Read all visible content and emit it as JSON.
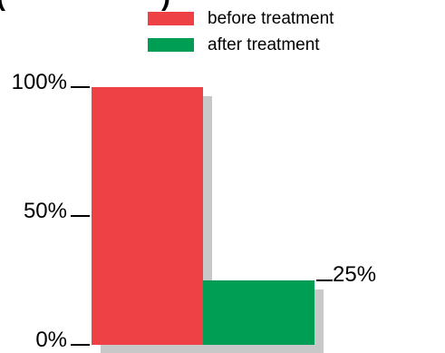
{
  "colors": {
    "before": "#ee4146",
    "after": "#009e55",
    "shadow": "#c8c8c8",
    "axis": "#000000"
  },
  "chart_data": {
    "type": "bar",
    "title": "",
    "xlabel": "",
    "ylabel": "",
    "ylim": [
      0,
      100
    ],
    "y_ticks": [
      {
        "value": 0,
        "label": "0%"
      },
      {
        "value": 50,
        "label": "50%"
      },
      {
        "value": 100,
        "label": "100%"
      }
    ],
    "legend": {
      "placement": "top-right",
      "entries": [
        "before treatment",
        "after treatment"
      ]
    },
    "series": [
      {
        "name": "before treatment",
        "values": [
          100
        ],
        "data_label": ""
      },
      {
        "name": "after treatment",
        "values": [
          25
        ],
        "data_label": "25%"
      }
    ],
    "grid": false
  }
}
